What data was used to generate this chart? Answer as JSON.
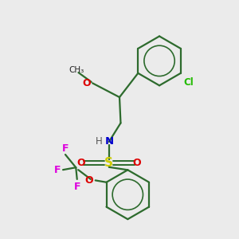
{
  "bg_color": "#ebebeb",
  "colors": {
    "bond": "#2d6b2d",
    "N": "#0000cc",
    "O": "#dd0000",
    "S": "#cccc00",
    "F": "#dd00dd",
    "Cl": "#22bb00",
    "H": "#555555",
    "text": "#222222"
  },
  "figsize": [
    3.0,
    3.0
  ],
  "dpi": 100
}
